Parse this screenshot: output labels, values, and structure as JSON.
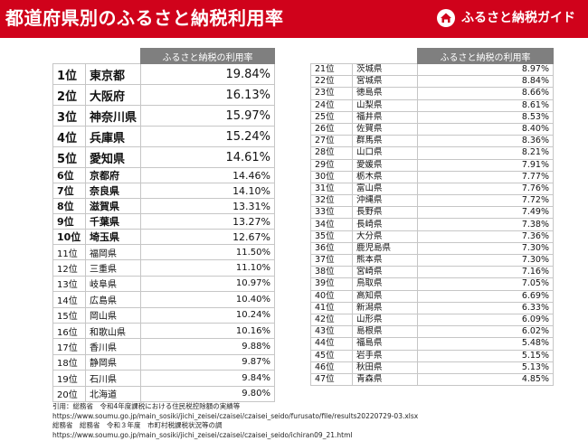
{
  "header": {
    "title": "都道府県別のふるさと納税利用率",
    "brand": "ふるさと納税ガイド",
    "brand_icon": "furusato-guide-logo-icon",
    "color": "#d0021b"
  },
  "table_header": "ふるさと納税の利用率",
  "left_rows": [
    {
      "rank": "1位",
      "pref": "東京都",
      "rate": "19.84%"
    },
    {
      "rank": "2位",
      "pref": "大阪府",
      "rate": "16.13%"
    },
    {
      "rank": "3位",
      "pref": "神奈川県",
      "rate": "15.97%"
    },
    {
      "rank": "4位",
      "pref": "兵庫県",
      "rate": "15.24%"
    },
    {
      "rank": "5位",
      "pref": "愛知県",
      "rate": "14.61%"
    },
    {
      "rank": "6位",
      "pref": "京都府",
      "rate": "14.46%"
    },
    {
      "rank": "7位",
      "pref": "奈良県",
      "rate": "14.10%"
    },
    {
      "rank": "8位",
      "pref": "滋賀県",
      "rate": "13.31%"
    },
    {
      "rank": "9位",
      "pref": "千葉県",
      "rate": "13.27%"
    },
    {
      "rank": "10位",
      "pref": "埼玉県",
      "rate": "12.67%"
    },
    {
      "rank": "11位",
      "pref": "福岡県",
      "rate": "11.50%"
    },
    {
      "rank": "12位",
      "pref": "三重県",
      "rate": "11.10%"
    },
    {
      "rank": "13位",
      "pref": "岐阜県",
      "rate": "10.97%"
    },
    {
      "rank": "14位",
      "pref": "広島県",
      "rate": "10.40%"
    },
    {
      "rank": "15位",
      "pref": "岡山県",
      "rate": "10.24%"
    },
    {
      "rank": "16位",
      "pref": "和歌山県",
      "rate": "10.16%"
    },
    {
      "rank": "17位",
      "pref": "香川県",
      "rate": "9.88%"
    },
    {
      "rank": "18位",
      "pref": "静岡県",
      "rate": "9.87%"
    },
    {
      "rank": "19位",
      "pref": "石川県",
      "rate": "9.84%"
    },
    {
      "rank": "20位",
      "pref": "北海道",
      "rate": "9.80%"
    }
  ],
  "right_rows": [
    {
      "rank": "21位",
      "pref": "茨城県",
      "rate": "8.97%"
    },
    {
      "rank": "22位",
      "pref": "宮城県",
      "rate": "8.84%"
    },
    {
      "rank": "23位",
      "pref": "徳島県",
      "rate": "8.66%"
    },
    {
      "rank": "24位",
      "pref": "山梨県",
      "rate": "8.61%"
    },
    {
      "rank": "25位",
      "pref": "福井県",
      "rate": "8.53%"
    },
    {
      "rank": "26位",
      "pref": "佐賀県",
      "rate": "8.40%"
    },
    {
      "rank": "27位",
      "pref": "群馬県",
      "rate": "8.36%"
    },
    {
      "rank": "28位",
      "pref": "山口県",
      "rate": "8.21%"
    },
    {
      "rank": "29位",
      "pref": "愛媛県",
      "rate": "7.91%"
    },
    {
      "rank": "30位",
      "pref": "栃木県",
      "rate": "7.77%"
    },
    {
      "rank": "31位",
      "pref": "富山県",
      "rate": "7.76%"
    },
    {
      "rank": "32位",
      "pref": "沖縄県",
      "rate": "7.72%"
    },
    {
      "rank": "33位",
      "pref": "長野県",
      "rate": "7.49%"
    },
    {
      "rank": "34位",
      "pref": "長崎県",
      "rate": "7.38%"
    },
    {
      "rank": "35位",
      "pref": "大分県",
      "rate": "7.36%"
    },
    {
      "rank": "36位",
      "pref": "鹿児島県",
      "rate": "7.30%"
    },
    {
      "rank": "37位",
      "pref": "熊本県",
      "rate": "7.30%"
    },
    {
      "rank": "38位",
      "pref": "宮崎県",
      "rate": "7.16%"
    },
    {
      "rank": "39位",
      "pref": "鳥取県",
      "rate": "7.05%"
    },
    {
      "rank": "40位",
      "pref": "高知県",
      "rate": "6.69%"
    },
    {
      "rank": "41位",
      "pref": "新潟県",
      "rate": "6.33%"
    },
    {
      "rank": "42位",
      "pref": "山形県",
      "rate": "6.09%"
    },
    {
      "rank": "43位",
      "pref": "島根県",
      "rate": "6.02%"
    },
    {
      "rank": "44位",
      "pref": "福島県",
      "rate": "5.48%"
    },
    {
      "rank": "45位",
      "pref": "岩手県",
      "rate": "5.15%"
    },
    {
      "rank": "46位",
      "pref": "秋田県",
      "rate": "5.13%"
    },
    {
      "rank": "47位",
      "pref": "青森県",
      "rate": "4.85%"
    }
  ],
  "citation": [
    "引用：総務省　令和4年度課税における住民税控除額の実績等",
    "https://www.soumu.go.jp/main_sosiki/jichi_zeisei/czaisei/czaisei_seido/furusato/file/results20220729-03.xlsx",
    "総務省　総務省　令和３年度　市町村税課税状況等の調",
    "https://www.soumu.go.jp/main_sosiki/jichi_zeisei/czaisei/czaisei_seido/ichiran09_21.html"
  ]
}
